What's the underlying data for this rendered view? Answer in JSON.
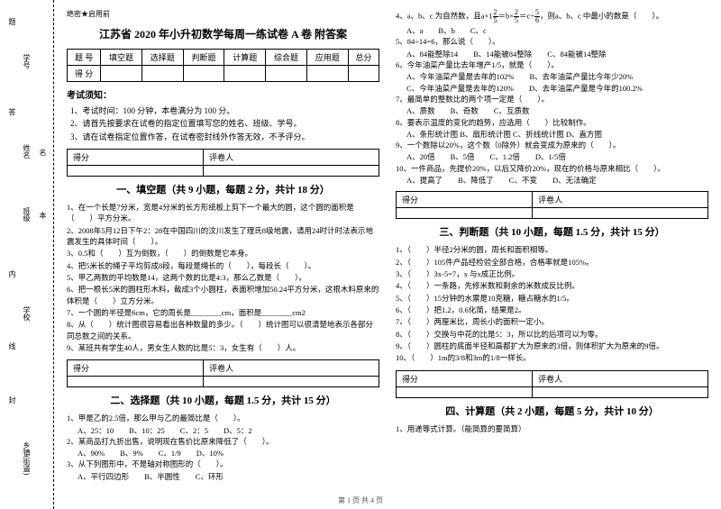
{
  "secret": "绝密★启用前",
  "title": "江苏省 2020 年小升初数学每周一练试卷 A 卷 附答案",
  "binding": {
    "labels": [
      "号",
      "学号",
      "姓名",
      "班级",
      "学校",
      "乡镇(街道)"
    ],
    "hints": [
      "题",
      "名",
      "本",
      "内",
      "线",
      "封",
      "答"
    ]
  },
  "header_table": {
    "row1": [
      "题 号",
      "填空题",
      "选择题",
      "判断题",
      "计算题",
      "综合题",
      "应用题",
      "总分"
    ],
    "row2": [
      "得 分",
      "",
      "",
      "",
      "",
      "",
      "",
      ""
    ]
  },
  "notice_title": "考试须知：",
  "notices": [
    "1、考试时间：100 分钟，本卷满分为 100 分。",
    "2、请首先按要求在试卷的指定位置填写您的姓名、班级、学号。",
    "3、请在试卷指定位置作答，在试卷密封线外作答无效，不予评分。"
  ],
  "score_labels": {
    "c1": "得分",
    "c2": "评卷人"
  },
  "sections": {
    "s1": "一、填空题（共 9 小题，每题 2 分，共计 18 分）",
    "s2": "二、选择题（共 10 小题，每题 1.5 分，共计 15 分）",
    "s3": "三、判断题（共 10 小题，每题 1.5 分，共计 15 分）",
    "s4": "四、计算题（共 2 小题，每题 5 分，共计 10 分）"
  },
  "fill": [
    "1、在一个长是7分米，宽是4分米的长方形纸板上剪下一个最大的圆，这个圆的面积是（　　）平方分米。",
    "2、2008年5月12日下午2：28在中国四川的汶川发生了理氏8级地震，请用24时计时法表示地震发生的具体时间（　　）。",
    "3、0.5和（　　）互为倒数，（　　）的倒数是它本身。",
    "4、把5米长的绳子平均剪成8段，每段是绳长的（　　），每段长（　　）。",
    "5、甲乙两数的平均数是14，这两个数的比是4:3，那么乙数是（　　）。",
    "6、把一根长5米的圆柱形木料，截成3个小圆柱，表面积增加50.24平方分米，这根木料原来的体积是（　　）立方分米。",
    "7、一个圆的半径是6cm，它的周长是________cm，面积是________cm2",
    "8、从（　　）统计图很容易看出各种数量的多少。（　　）统计图可以很清楚地表示各部分同总数之间的关系。",
    "9、某班共有学生40人，男女生人数的比是5：3，女生有（　　）人。"
  ],
  "choice_left": [
    {
      "q": "1、甲是乙的2.5倍，那么甲与乙的最简比是（　　）。",
      "o": "A、25：10　　B、10：25　　C、2：5　　D、5：2"
    },
    {
      "q": "2、某商品打九折出售，说明现在售价比原来降低了（　　）。",
      "o": "A、90%　　B、9%　　C、1/9　　D、10%"
    },
    {
      "q": "3、从下列图形中，不是轴对称图形的（　　）。",
      "o": "A、平行四边形　　B、半圆性　　C、环形"
    }
  ],
  "choice_right": [
    {
      "q": "4、a、b、c 为自然数，且a×1<span class='frac'><span class='n'>2</span><span class='d'>5</span></span>＝b×<span class='frac'><span class='n'>2</span><span class='d'>5</span></span>＝c÷<span class='frac'><span class='n'>5</span><span class='d'>6</span></span>，则a、b、c 中最小的数是（　　）。",
      "o": "A、a　　B、b　　C、c"
    },
    {
      "q": "5、84÷14=6，那么说（　　）。",
      "o": "A、84能整除14　　B、14能被84整除　　C、84能被14整除"
    },
    {
      "q": "6、今年油菜产量比去年增产1/5，就是（　　）。",
      "o": "A、今年油菜产量是去年的102%　　B、去年油菜产量比今年少20%\nC、今年油菜产量是去年的120%　　D、去年油菜产量是今年的100.2%"
    },
    {
      "q": "7、最简单的整数比的两个项一定是（　　）。",
      "o": "A、质数　　B、奇数　　C、互质数"
    },
    {
      "q": "8、要表示温度的变化的趋势，应选用（　　）比较制作。",
      "o": "A、条形统计图 B、扇形统计图 C、折线统计图 D、直方图"
    },
    {
      "q": "9、一个数除以20%，这个数（0除外）就会变成为原来的（　　）。",
      "o": "A、20倍　　B、5倍　　C、1.2倍　　D、1/5倍"
    },
    {
      "q": "10、一件商品，先提价20%，以后又降价20%，现在的价格与原来相比（　　）。",
      "o": "A、提高了　　B、降低了　　C、不变　　D、无法确定"
    }
  ],
  "judge": [
    "1、（　　）半径2分米的圆，周长和面积相等。",
    "2、（　　）105件产品经检验全部合格，合格率就是105%。",
    "3、（　　）3x-5=7，x 与x成正比例。",
    "4、（　　）一条路，先修米数和剩余的米数成反比例。",
    "5、（　　）15分钟的水票是10克糖，糖占糖水的1/5。",
    "6、（　　）把1.2，0.6化简，结果是2。",
    "7、（　　）两厘米比，周长小的面积一定小。",
    "8、（　　）交换与中花的比是5：3，所以比的后项可以为零。",
    "9、（　　）圆柱的底面半径和高都扩大为原来的3倍，则体积扩大为原来的9倍。",
    "10、（　　）1m的3/8和3m的1/8一样长。"
  ],
  "calc": [
    "1、用递等式计算。（能简算的要简算）"
  ],
  "footer": "第 1 页 共 4 页"
}
